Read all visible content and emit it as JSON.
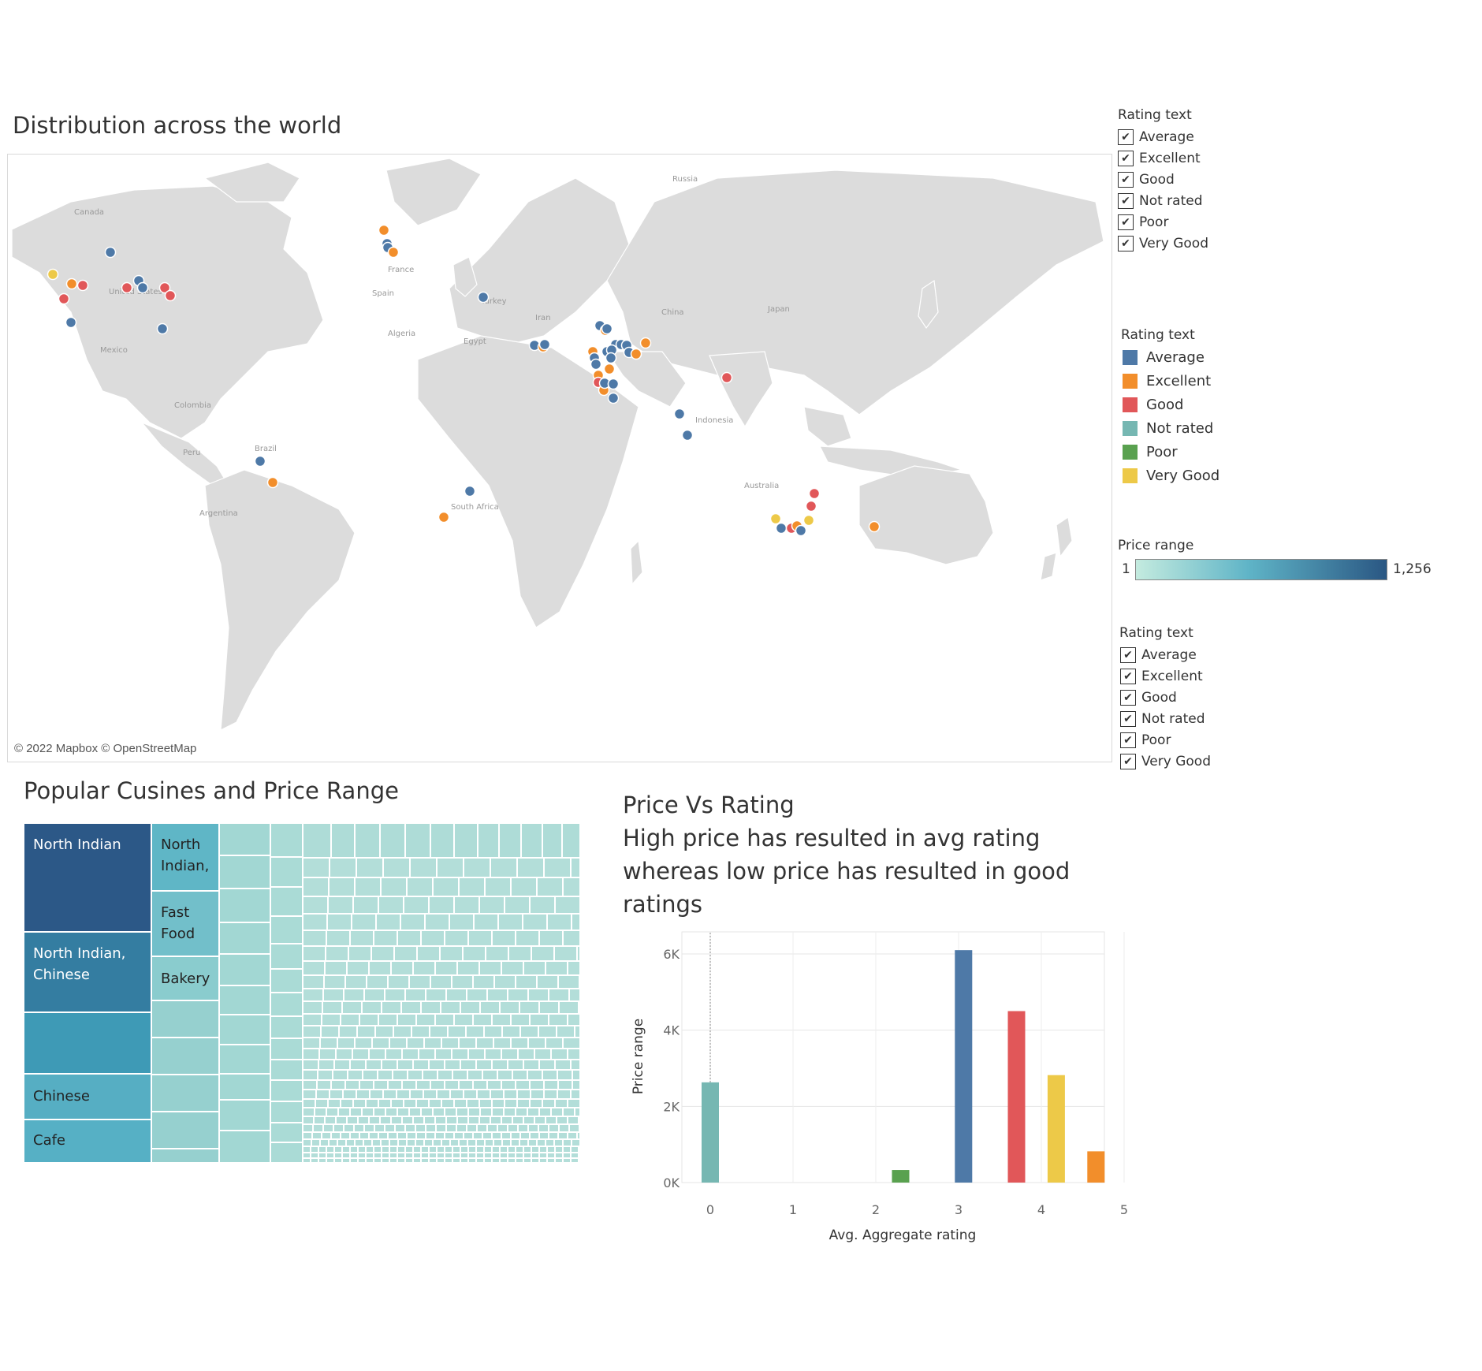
{
  "map": {
    "title": "Distribution across the world",
    "attribution": "© 2022 Mapbox © OpenStreetMap",
    "place_labels": [
      "Russia",
      "Canada",
      "United States",
      "Mexico",
      "Colombia",
      "Peru",
      "Brazil",
      "Argentina",
      "France",
      "Spain",
      "Algeria",
      "Egypt",
      "Turkey",
      "Iran",
      "China",
      "Japan",
      "Indonesia",
      "Australia",
      "South Africa"
    ]
  },
  "legend_filter_1": {
    "title": "Rating text",
    "items": [
      "Average",
      "Excellent",
      "Good",
      "Not rated",
      "Poor",
      "Very Good"
    ]
  },
  "legend_color": {
    "title": "Rating text",
    "items": [
      {
        "label": "Average",
        "color": "#4e79a7"
      },
      {
        "label": "Excellent",
        "color": "#f28e2b"
      },
      {
        "label": "Good",
        "color": "#e15759"
      },
      {
        "label": "Not rated",
        "color": "#76b7b2"
      },
      {
        "label": "Poor",
        "color": "#59a14f"
      },
      {
        "label": "Very Good",
        "color": "#edc948"
      }
    ]
  },
  "legend_price": {
    "title": "Price range",
    "min_label": "1",
    "max_label": "1,256",
    "color_low": "#c4ebdf",
    "color_high": "#2a5783"
  },
  "legend_filter_2": {
    "title": "Rating text",
    "items": [
      "Average",
      "Excellent",
      "Good",
      "Not rated",
      "Poor",
      "Very Good"
    ]
  },
  "treemap": {
    "title": "Popular Cusines and Price Range",
    "labels": {
      "north_indian": "North Indian",
      "north_indian_chinese": "North Indian, Chinese",
      "chinese": "Chinese",
      "cafe": "Cafe",
      "north_indian_short": "North Indian,",
      "fast_food": "Fast Food",
      "bakery": "Bakery"
    }
  },
  "bar_chart": {
    "title_lines": [
      "Price Vs Rating",
      "High price has resulted in avg rating",
      "whereas low price has resulted in good",
      "ratings"
    ]
  },
  "chart_data": {
    "type": "bar",
    "title": "Price Vs Rating",
    "subtitle": "High price has resulted in avg rating whereas low price has resulted in good ratings",
    "xlabel": "Avg. Aggregate rating",
    "ylabel": "Price range",
    "xlim": [
      -0.3,
      5
    ],
    "ylim": [
      0,
      6300
    ],
    "x_ticks": [
      "0",
      "1",
      "2",
      "3",
      "4",
      "5"
    ],
    "y_ticks": [
      "0K",
      "2K",
      "4K",
      "6K"
    ],
    "series": [
      {
        "name": "Not rated",
        "x": 0.0,
        "value": 2630,
        "color": "#76b7b2"
      },
      {
        "name": "Poor",
        "x": 2.3,
        "value": 330,
        "color": "#59a14f"
      },
      {
        "name": "Average",
        "x": 3.06,
        "value": 6100,
        "color": "#4e79a7"
      },
      {
        "name": "Good",
        "x": 3.7,
        "value": 4500,
        "color": "#e15759"
      },
      {
        "name": "Very Good",
        "x": 4.18,
        "value": 2820,
        "color": "#edc948"
      },
      {
        "name": "Excellent",
        "x": 4.66,
        "value": 820,
        "color": "#f28e2b"
      }
    ],
    "grid": true,
    "legend": "none"
  }
}
